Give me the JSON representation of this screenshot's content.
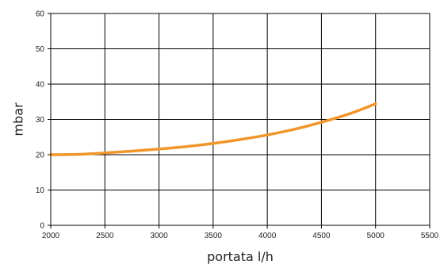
{
  "chart_data": {
    "type": "line",
    "xlabel": "portata l/h",
    "ylabel": "mbar",
    "xlim": [
      2000,
      5500
    ],
    "ylim": [
      0,
      60
    ],
    "x_ticks": [
      2000,
      2500,
      3000,
      3500,
      4000,
      4500,
      5000,
      5500
    ],
    "y_ticks": [
      0,
      10,
      20,
      30,
      40,
      50,
      60
    ],
    "grid": true,
    "x_tick_labels": [
      "2000",
      "2500",
      "3000",
      "3500",
      "4000",
      "4500",
      "5000",
      "5500"
    ],
    "y_tick_labels": [
      "0",
      "10",
      "20",
      "30",
      "40",
      "50",
      "60"
    ],
    "series": [
      {
        "color": "#f0962a",
        "x": [
          2000,
          2250,
          2500,
          2750,
          3000,
          3250,
          3500,
          3750,
          4000,
          4250,
          4500,
          4750,
          5000
        ],
        "y": [
          20,
          20.1,
          20.5,
          21,
          21.6,
          22.3,
          23.2,
          24.3,
          25.6,
          27.2,
          29.2,
          31.5,
          34.4
        ]
      }
    ]
  }
}
